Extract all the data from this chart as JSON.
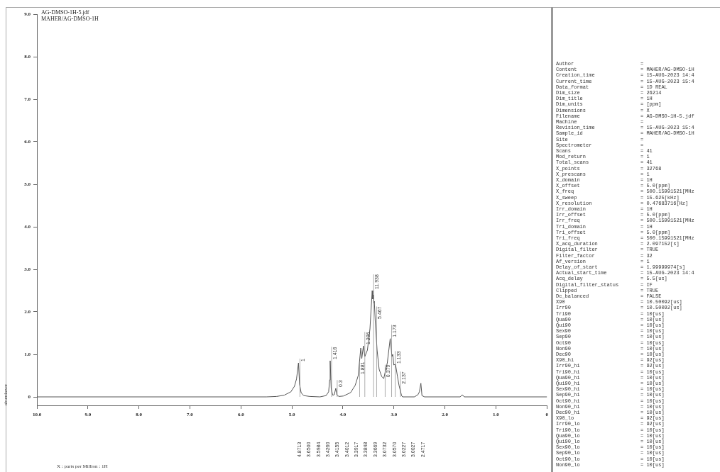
{
  "chart_data": [
    {
      "type": "line",
      "title": "AG-DMSO-1H-5.jdf",
      "subtitle": "MAHER/AG-DMSO-1H",
      "xlabel": "X : parts per Million : 1H",
      "ylabel": "abundance",
      "color": "#555555",
      "marker": "none",
      "x": [
        10.0,
        5.5,
        5.3,
        5.15,
        5.02,
        4.95,
        4.91,
        4.8713,
        4.85,
        4.82,
        4.77,
        4.65,
        4.45,
        4.33,
        4.28,
        4.26,
        4.25,
        4.23,
        4.2,
        4.17,
        4.14,
        4.12,
        4.08,
        3.99,
        3.85,
        3.76,
        3.7,
        3.65,
        3.63,
        3.5984,
        3.57,
        3.52,
        3.47,
        3.426,
        3.4155,
        3.4012,
        3.3917,
        3.3848,
        3.3669,
        3.33,
        3.29,
        3.24,
        3.2,
        3.13,
        3.0732,
        3.057,
        3.04,
        3.0227,
        3.0027,
        2.97,
        2.93,
        2.9,
        2.85,
        2.83,
        2.6,
        2.53,
        2.5,
        2.4717,
        2.45,
        2.4,
        1.7,
        1.66,
        1.62,
        0
      ],
      "values": [
        0,
        0,
        0.01,
        0.04,
        0.12,
        0.25,
        0.42,
        0.8,
        0.3,
        0.1,
        0.03,
        0.01,
        0,
        0.03,
        0.12,
        0.4,
        0.85,
        0.2,
        0.04,
        0.05,
        0.2,
        0.05,
        0.01,
        0.02,
        0.1,
        0.27,
        0.5,
        1.15,
        0.9,
        1.2,
        0.95,
        1.1,
        1.6,
        2.5,
        2.3,
        2.4,
        2.2,
        2.25,
        1.8,
        1.1,
        0.65,
        0.48,
        0.43,
        0.8,
        1.37,
        1.2,
        0.95,
        1.0,
        0.75,
        0.77,
        0.48,
        0.27,
        0.03,
        0,
        0,
        0.05,
        0.12,
        0.32,
        0.03,
        0,
        0,
        0.05,
        0,
        0
      ],
      "xlim": [
        10,
        0
      ],
      "xticks": [
        {
          "value": 10,
          "label": "10.0"
        },
        {
          "value": 9,
          "label": "9.0"
        },
        {
          "value": 8,
          "label": "8.0"
        },
        {
          "value": 7,
          "label": "7.0"
        },
        {
          "value": 6,
          "label": "6.0"
        },
        {
          "value": 5,
          "label": "5.0"
        },
        {
          "value": 4,
          "label": "4.0"
        },
        {
          "value": 3,
          "label": "3.0"
        },
        {
          "value": 2,
          "label": "2.0"
        },
        {
          "value": 1,
          "label": "1.0"
        },
        0
      ],
      "ylim": [
        -0.2,
        9
      ],
      "yticks": [
        0,
        {
          "value": 1,
          "label": "1.0"
        },
        {
          "value": 2,
          "label": "2.0"
        },
        {
          "value": 3,
          "label": "3.0"
        },
        {
          "value": 4,
          "label": "4.0"
        },
        {
          "value": 5,
          "label": "5.0"
        },
        {
          "value": 6,
          "label": "6.0"
        },
        {
          "value": 7,
          "label": "7.0"
        },
        {
          "value": 8,
          "label": "8.0"
        },
        {
          "value": 9,
          "label": "9.0"
        }
      ],
      "annotations": [
        {
          "text": "1",
          "x": 4.8713,
          "y": 0.8
        },
        {
          "text": "1.416",
          "x": 4.25,
          "y": 0.85
        },
        {
          "text": "0.3",
          "x": 4.14,
          "y": 0.2
        },
        {
          "text": "1.881",
          "x": 3.7,
          "y": 0.5
        },
        {
          "text": "1.296",
          "x": 3.5984,
          "y": 1.2
        },
        {
          "text": "5.467",
          "x": 3.3669,
          "y": 1.8
        },
        {
          "text": "11.938",
          "x": 3.426,
          "y": 2.5
        },
        {
          "text": "0.379",
          "x": 3.2,
          "y": 0.43
        },
        {
          "text": "1.173",
          "x": 3.0732,
          "y": 1.37
        },
        {
          "text": "1.133",
          "x": 3.0027,
          "y": 0.75
        },
        {
          "text": "2.137",
          "x": 2.9,
          "y": 0.27
        },
        "4.8713",
        "3.6500",
        "3.5984",
        "3.4260",
        "3.4155",
        "3.4012",
        "3.3917",
        "3.3848",
        "3.3669",
        "3.0732",
        "3.0570",
        "3.0227",
        "3.0027",
        "2.4717"
      ]
    },
    {
      "type": "other",
      "annotations": [
        "Author",
        "=",
        "Content",
        "= MAHER/AG-DMSO-1H",
        "Creation_time",
        "= 15-AUG-2023 14:4",
        "Current_time",
        "= 15-AUG-2023 15:4",
        "Data_format",
        "= 1D REAL",
        "Dim_size",
        "= 26214",
        "Dim_title",
        "= 1H",
        "Dim_units",
        "= [ppm]",
        "Dimensions",
        "= X",
        "Filename",
        "= AG-DMSO-1H-5.jdf",
        "Machine",
        "=",
        "Revision_time",
        "= 15-AUG-2023 15:4",
        "Sample_id",
        "= MAHER/AG-DMSO-1H",
        "Site",
        "=",
        "Spectrometer",
        "=",
        "Scans",
        "= 41",
        "Mod_return",
        "= 1",
        "Total_scans",
        "= 41",
        "X_points",
        "= 32768",
        "X_prescans",
        "= 1",
        "X_domain",
        "= 1H",
        "X_offset",
        "= 5.0[ppm]",
        "X_freq",
        "= 500.15991521[MHz",
        "X_sweep",
        "= 15.625[kHz]",
        "X_resolution",
        "= 0.47683716[Hz]",
        "Irr_domain",
        "= 1H",
        "Irr_offset",
        "= 5.0[ppm]",
        "Irr_freq",
        "= 500.15991521[MHz",
        "Tri_domain",
        "= 1H",
        "Tri_offset",
        "= 5.0[ppm]",
        "Tri_freq",
        "= 500.15991521[MHz",
        "X_acq_duration",
        "= 2.097152[s]",
        "Digital_filter",
        "= TRUE",
        "Filter_factor",
        "= 32",
        "Af_version",
        "= 1",
        "Delay_of_start",
        "= 1.99999974[s]",
        "Actual_start_time",
        "= 15-AUG-2023 14:4",
        "Acq_delay",
        "= 5.5[us]",
        "Digital_filter_status",
        "= IF",
        "Clipped",
        "= TRUE",
        "Dc_balanced",
        "= FALSE",
        "X90",
        "= 10.50092[us]",
        "Irr90",
        "= 10.50092[us]",
        "Tri90",
        "= 10[us]",
        "Qua90",
        "= 10[us]",
        "Qui90",
        "= 10[us]",
        "Sex90",
        "= 10[us]",
        "Sep90",
        "= 10[us]",
        "Oct90",
        "= 10[us]",
        "Non90",
        "= 10[us]",
        "Dec90",
        "= 10[us]",
        "X90_hi",
        "= 92[us]",
        "Irr90_hi",
        "= 92[us]",
        "Tri90_hi",
        "= 10[us]",
        "Qua90_hi",
        "= 10[us]",
        "Qui90_hi",
        "= 10[us]",
        "Sex90_hi",
        "= 10[us]",
        "Sep90_hi",
        "= 10[us]",
        "Oct90_hi",
        "= 10[us]",
        "Non90_hi",
        "= 10[us]",
        "Dec90_hi",
        "= 10[us]",
        "X90_lo",
        "= 92[us]",
        "Irr90_lo",
        "= 92[us]",
        "Tri90_lo",
        "= 10[us]",
        "Qua90_lo",
        "= 10[us]",
        "Qui90_lo",
        "= 10[us]",
        "Sex90_lo",
        "= 10[us]",
        "Sep90_lo",
        "= 10[us]",
        "Oct90_lo",
        "= 10[us]",
        "Non90_lo",
        "= 10[us]"
      ]
    }
  ]
}
